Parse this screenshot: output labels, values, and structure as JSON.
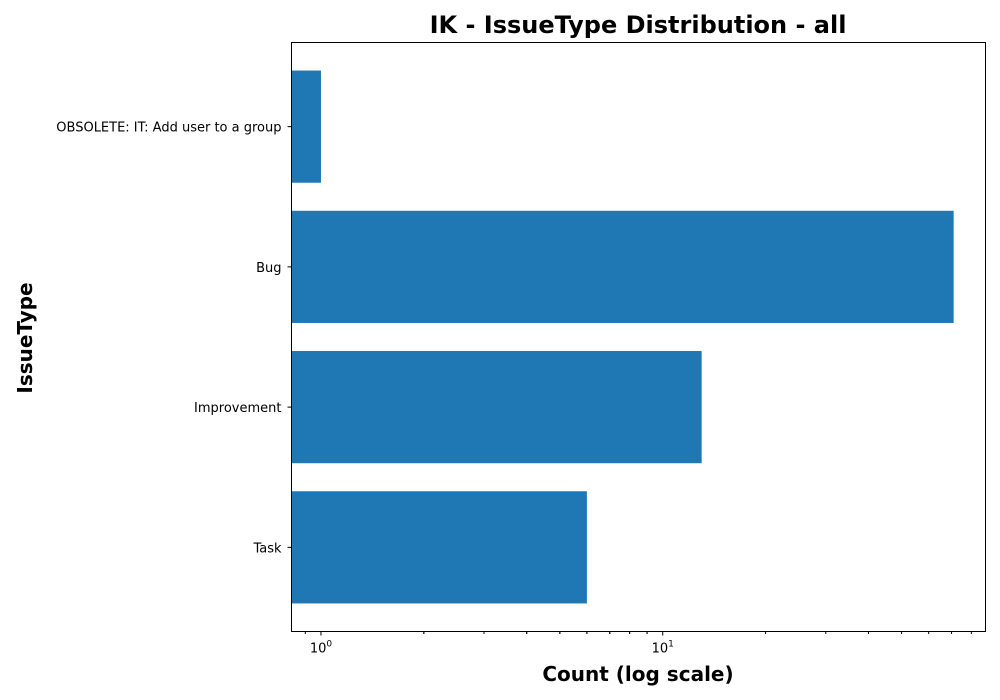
{
  "chart_data": {
    "type": "bar",
    "orientation": "horizontal",
    "title": "IK - IssueType Distribution - all",
    "xlabel": "Count (log scale)",
    "ylabel": "IssueType",
    "x_scale": "log",
    "xlim": [
      0.82,
      88
    ],
    "categories": [
      "OBSOLETE: IT: Add user to a group",
      "Bug",
      "Improvement",
      "Task"
    ],
    "values": [
      1,
      71,
      13,
      6
    ],
    "x_ticks": [
      {
        "value": 1,
        "base": "10",
        "exp": "0"
      },
      {
        "value": 10,
        "base": "10",
        "exp": "1"
      }
    ],
    "bar_color": "#1f77b4",
    "grid": false,
    "legend": "none"
  }
}
